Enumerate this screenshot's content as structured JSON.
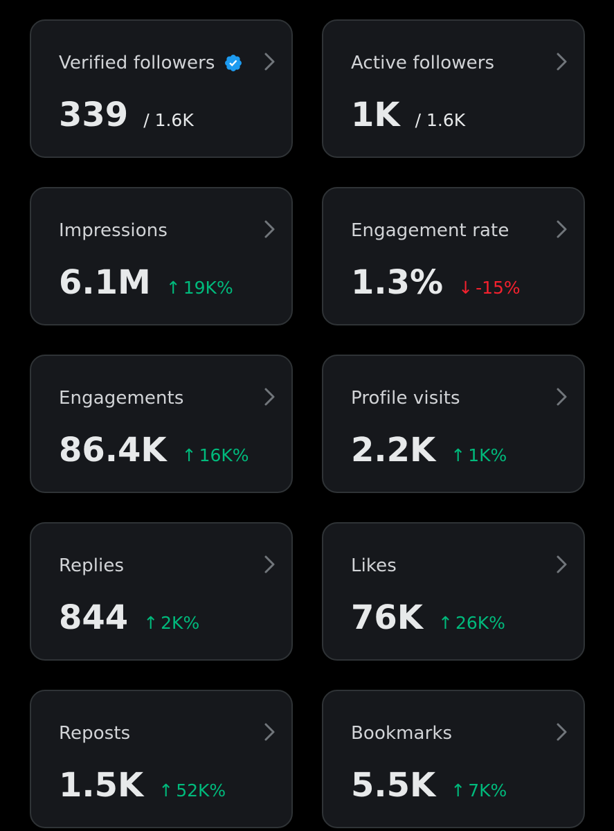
{
  "colors": {
    "background": "#000000",
    "card": "#16181c",
    "card_border": "#2f3336",
    "verified_badge": "#1d9bf0",
    "positive": "#00ba7c",
    "negative": "#f4212e"
  },
  "icons": {
    "verified": "verified-badge-icon",
    "chevron": "chevron-right-icon",
    "up": "arrow-up-icon",
    "down": "arrow-down-icon"
  },
  "cards": [
    {
      "title": "Verified followers",
      "value": "339",
      "sub": "/ 1.6K"
    },
    {
      "title": "Active followers",
      "value": "1K",
      "sub": "/ 1.6K"
    },
    {
      "title": "Impressions",
      "value": "6.1M",
      "arrow": "↑",
      "change": "19K%",
      "direction": "up"
    },
    {
      "title": "Engagement rate",
      "value": "1.3%",
      "arrow": "↓",
      "change": "-15%",
      "direction": "down"
    },
    {
      "title": "Engagements",
      "value": "86.4K",
      "arrow": "↑",
      "change": "16K%",
      "direction": "up"
    },
    {
      "title": "Profile visits",
      "value": "2.2K",
      "arrow": "↑",
      "change": "1K%",
      "direction": "up"
    },
    {
      "title": "Replies",
      "value": "844",
      "arrow": "↑",
      "change": "2K%",
      "direction": "up"
    },
    {
      "title": "Likes",
      "value": "76K",
      "arrow": "↑",
      "change": "26K%",
      "direction": "up"
    },
    {
      "title": "Reposts",
      "value": "1.5K",
      "arrow": "↑",
      "change": "52K%",
      "direction": "up"
    },
    {
      "title": "Bookmarks",
      "value": "5.5K",
      "arrow": "↑",
      "change": "7K%",
      "direction": "up"
    }
  ]
}
